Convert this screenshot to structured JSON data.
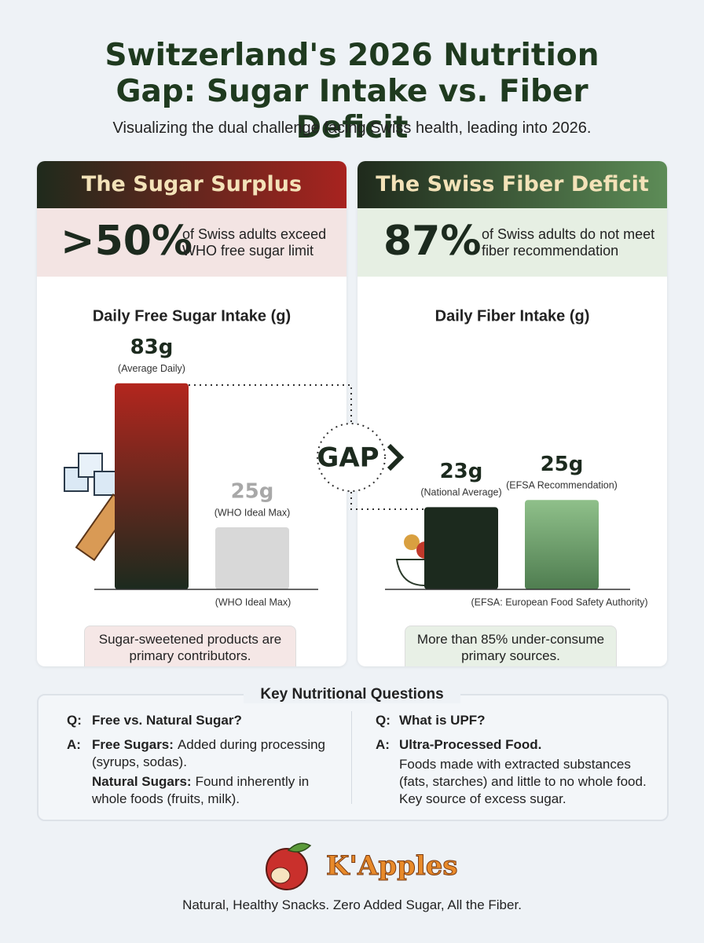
{
  "header": {
    "title": "Switzerland's 2026 Nutrition Gap: Sugar Intake vs. Fiber Deficit",
    "subtitle": "Visualizing the dual challenge facing Swiss health, leading into 2026."
  },
  "panels": [
    {
      "heading": "The Sugar Surplus",
      "stat": ">50%",
      "stat_text": "of Swiss adults exceed WHO free sugar limit",
      "note": "Sugar-sweetened products are primary contributors."
    },
    {
      "heading": "The Swiss Fiber Deficit",
      "stat": "87%",
      "stat_text": "of Swiss adults do not meet fiber recommendation",
      "note": "More than 85% under-consume primary sources."
    }
  ],
  "chart_data": [
    {
      "type": "bar",
      "title": "Daily Free Sugar Intake (g)",
      "categories": [
        "(Average Daily)",
        "(WHO Ideal Max)"
      ],
      "values": [
        83,
        25
      ],
      "value_labels": [
        "83g",
        "25g"
      ],
      "colors": [
        [
          "#b3261e",
          "#1c2a1e"
        ],
        [
          "#d8d8d8",
          "#d8d8d8"
        ]
      ],
      "axis_note": "(WHO Ideal Max)"
    },
    {
      "type": "bar",
      "title": "Daily Fiber Intake (g)",
      "categories": [
        "(National Average)",
        "(EFSA Recommendation)"
      ],
      "values": [
        23,
        25
      ],
      "value_labels": [
        "23g",
        "25g"
      ],
      "colors": [
        [
          "#1c2a1e",
          "#1c2a1e"
        ],
        [
          "#8fc08a",
          "#4f7d50"
        ]
      ],
      "axis_note": "(EFSA: European Food Safety Authority)"
    }
  ],
  "gap_label": "GAP",
  "questions": {
    "title": "Key Nutritional Questions",
    "items": [
      {
        "q_marker": "Q:",
        "question": "Free vs. Natural Sugar?",
        "a_marker": "A:",
        "answers": [
          {
            "term": "Free Sugars:",
            "text": "Added during processing (syrups, sodas)."
          },
          {
            "term": "Natural Sugars:",
            "text": "Found inherently in whole foods (fruits, milk)."
          }
        ]
      },
      {
        "q_marker": "Q:",
        "question": "What is UPF?",
        "a_marker": "A:",
        "answers": [
          {
            "term": "Ultra-Processed Food."
          },
          {
            "text": "Foods made with extracted substances (fats, starches) and little to no whole food. Key source of excess sugar."
          }
        ]
      }
    ]
  },
  "footer": {
    "brand": "K'Apples",
    "tagline": "Natural, Healthy Snacks. Zero Added Sugar, All the Fiber."
  }
}
